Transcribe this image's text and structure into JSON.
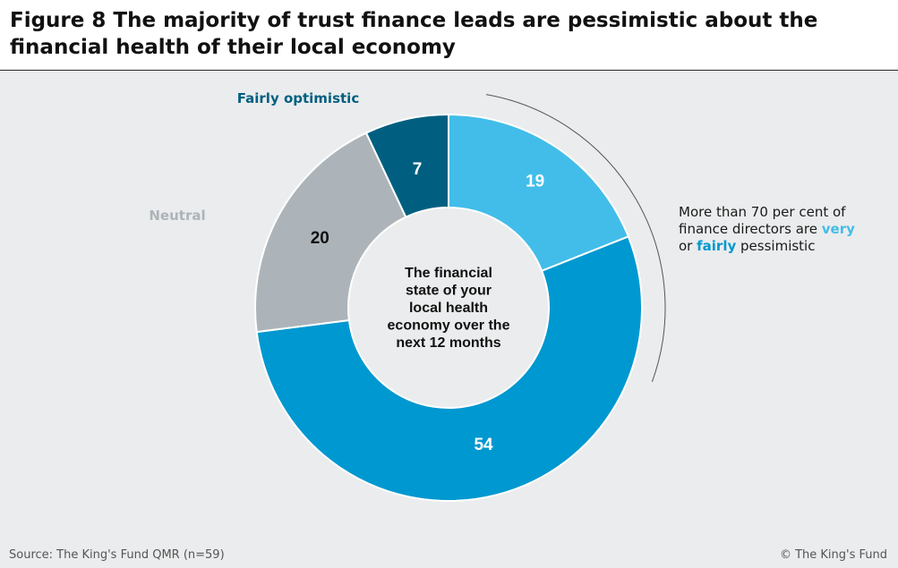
{
  "title": "Figure 8 The majority of trust finance leads are pessimistic about the financial health of their local economy",
  "source": "Source: The King's Fund QMR (n=59)",
  "copyright": "© The King's Fund",
  "annotation": {
    "text_before": "More than 70 per cent of finance directors are",
    "very": "very",
    "or": "or",
    "fairly": "fairly",
    "text_after": "pessimistic"
  },
  "colors": {
    "very_pessimistic": "#42bde9",
    "fairly_pessimistic": "#0098d0",
    "neutral": "#adb4b9",
    "fairly_optimistic": "#005f80",
    "background": "#ebeced",
    "bracket": "#555555"
  },
  "chart_data": {
    "type": "pie",
    "donut": true,
    "center_label": [
      "The financial",
      "state of your",
      "local health",
      "economy over the",
      "next 12 months"
    ],
    "slices": [
      {
        "label": "",
        "value": 19,
        "color": "#42bde9"
      },
      {
        "label": "",
        "value": 54,
        "color": "#0098d0"
      },
      {
        "label": "Neutral",
        "value": 20,
        "color": "#adb4b9"
      },
      {
        "label": "Fairly optimistic",
        "value": 7,
        "color": "#005f80"
      }
    ]
  }
}
